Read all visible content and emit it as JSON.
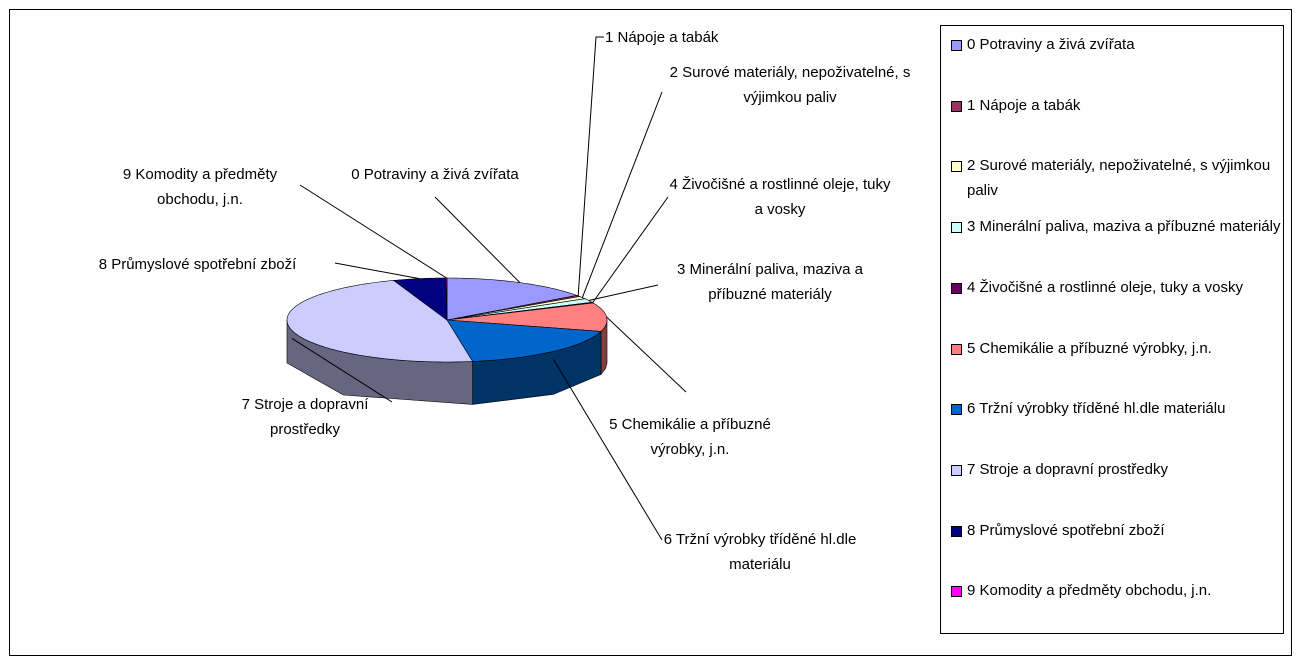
{
  "chart_data": {
    "type": "pie3d",
    "categories": [
      "0 Potraviny a živá zvířata",
      "1 Nápoje a tabák",
      "2 Surové materiály, nepoživatelné, s výjimkou paliv",
      "3 Minerální paliva, maziva a příbuzné materiály",
      "4 Živočišné a rostlinné oleje, tuky a vosky",
      "5 Chemikálie a příbuzné výrobky, j.n.",
      "6 Tržní výrobky tříděné hl.dle materiálu",
      "7 Stroje a dopravní prostředky",
      "8 Průmyslové spotřební zboží",
      "9 Komodity a předměty obchodu, j.n."
    ],
    "values": [
      15,
      0.5,
      1,
      1.5,
      0.3,
      11,
      18,
      47,
      5.3,
      0.1
    ],
    "colors": [
      "#9999ff",
      "#993366",
      "#ffffcc",
      "#ccffff",
      "#660066",
      "#ff8080",
      "#0066cc",
      "#ccccff",
      "#000080",
      "#ff00ff"
    ],
    "legend": "right"
  }
}
